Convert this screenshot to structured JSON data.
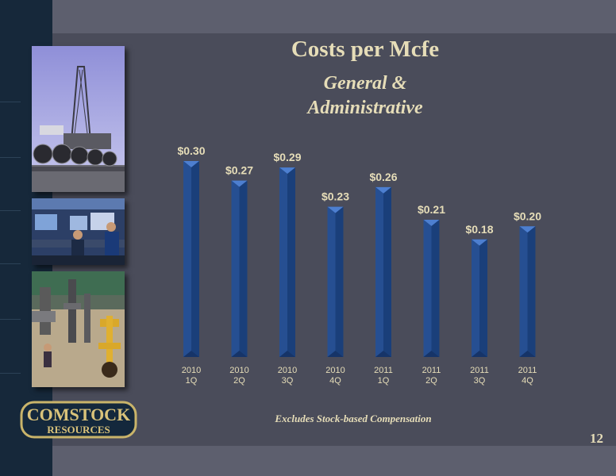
{
  "slide": {
    "title": "Costs per Mcfe",
    "subtitle_line1": "General &",
    "subtitle_line2": "Administrative",
    "footnote": "Excludes Stock-based Compensation",
    "page_number": "12"
  },
  "logo": {
    "line1": "COMSTOCK",
    "line2": "RESOURCES"
  },
  "colors": {
    "background": "#4a4c5a",
    "bar": "#1f4a8c",
    "text": "#e6ddb8"
  },
  "chart_data": {
    "type": "bar",
    "title": "",
    "categories": [
      [
        "2010",
        "1Q"
      ],
      [
        "2010",
        "2Q"
      ],
      [
        "2010",
        "3Q"
      ],
      [
        "2010",
        "4Q"
      ],
      [
        "2011",
        "1Q"
      ],
      [
        "2011",
        "2Q"
      ],
      [
        "2011",
        "3Q"
      ],
      [
        "2011",
        "4Q"
      ]
    ],
    "values": [
      0.3,
      0.27,
      0.29,
      0.23,
      0.26,
      0.21,
      0.18,
      0.2
    ],
    "data_labels": [
      "$0.30",
      "$0.27",
      "$0.29",
      "$0.23",
      "$0.26",
      "$0.21",
      "$0.18",
      "$0.20"
    ],
    "xlabel": "",
    "ylabel": "",
    "ylim": [
      0,
      0.34
    ],
    "grid": false,
    "legend": "none"
  }
}
